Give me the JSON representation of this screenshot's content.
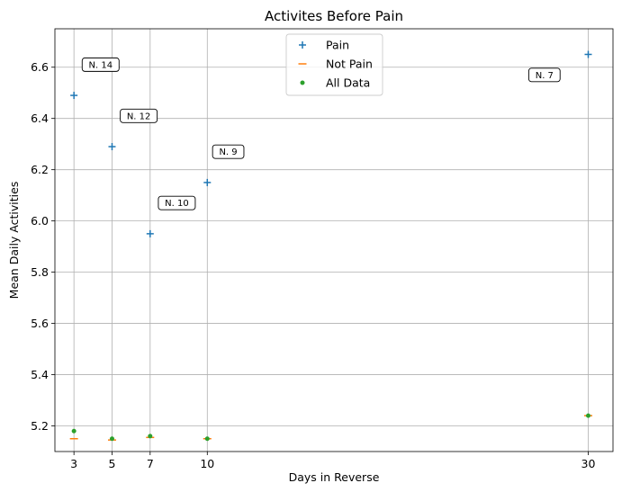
{
  "chart_data": {
    "type": "scatter",
    "title": "Activites Before Pain",
    "xlabel": "Days in Reverse",
    "ylabel": "Mean Daily Activities",
    "x": [
      3,
      5,
      7,
      10,
      30
    ],
    "xticks": [
      3,
      5,
      7,
      10,
      30
    ],
    "yticks": [
      5.2,
      5.4,
      5.6,
      5.8,
      6.0,
      6.2,
      6.4,
      6.6
    ],
    "ytick_labels": [
      "5.2",
      "5.4",
      "5.6",
      "5.8",
      "6.0",
      "6.2",
      "6.4",
      "6.6"
    ],
    "xlim": [
      2.0,
      31.3
    ],
    "ylim": [
      5.1,
      6.75
    ],
    "grid": true,
    "legend_position": "top-center",
    "series": [
      {
        "name": "Pain",
        "marker": "plus",
        "color": "#1f77b4",
        "values": [
          6.49,
          6.29,
          5.95,
          6.15,
          6.65
        ]
      },
      {
        "name": "Not Pain",
        "marker": "hline",
        "color": "#ff7f0e",
        "values": [
          5.15,
          5.145,
          5.155,
          5.15,
          5.24
        ]
      },
      {
        "name": "All Data",
        "marker": "dot",
        "color": "#2ca02c",
        "values": [
          5.18,
          5.15,
          5.16,
          5.15,
          5.24
        ]
      }
    ],
    "annotations": [
      {
        "text": "N. 14",
        "x": 4.4,
        "y": 6.61
      },
      {
        "text": "N. 12",
        "x": 6.4,
        "y": 6.41
      },
      {
        "text": "N. 10",
        "x": 8.4,
        "y": 6.07
      },
      {
        "text": "N. 9",
        "x": 11.1,
        "y": 6.27
      },
      {
        "text": "N. 7",
        "x": 27.7,
        "y": 6.57
      }
    ]
  }
}
